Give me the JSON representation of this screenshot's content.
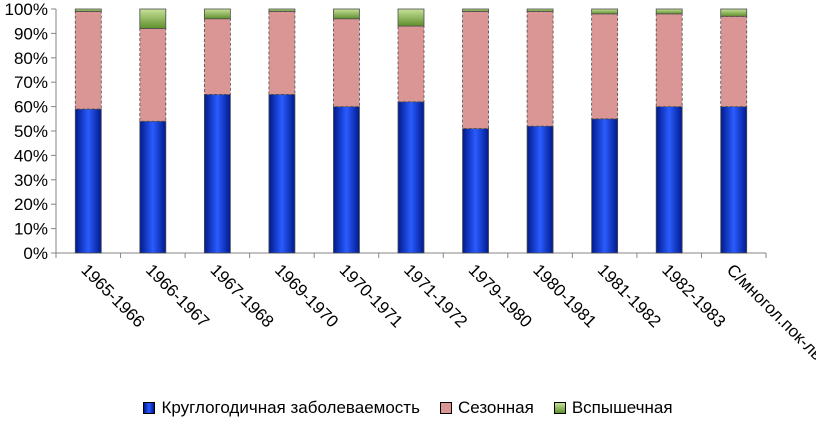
{
  "chart_data": {
    "type": "bar",
    "stacked": true,
    "percent": true,
    "categories": [
      "1965-1966",
      "1966-1967",
      "1967-1968",
      "1969-1970",
      "1970-1971",
      "1971-1972",
      "1979-1980",
      "1980-1981",
      "1981-1982",
      "1982-1983",
      "С/многол.пок-ль"
    ],
    "series": [
      {
        "name": "Круглогодичная заболеваемость",
        "color": "#0a2fd8",
        "values": [
          59,
          54,
          65,
          65,
          60,
          62,
          51,
          52,
          55,
          60,
          60
        ]
      },
      {
        "name": "Сезонная",
        "color": "#d99694",
        "values": [
          40,
          38,
          31,
          34,
          36,
          31,
          48,
          47,
          43,
          38,
          37
        ]
      },
      {
        "name": "Вспышечная",
        "color": "#77a33b",
        "values": [
          1,
          8,
          4,
          1,
          4,
          7,
          1,
          1,
          2,
          2,
          3
        ]
      }
    ],
    "y_ticks": [
      "0%",
      "10%",
      "20%",
      "30%",
      "40%",
      "50%",
      "60%",
      "70%",
      "80%",
      "90%",
      "100%"
    ],
    "ylim": [
      0,
      100
    ],
    "grid": false,
    "legend_position": "bottom"
  }
}
